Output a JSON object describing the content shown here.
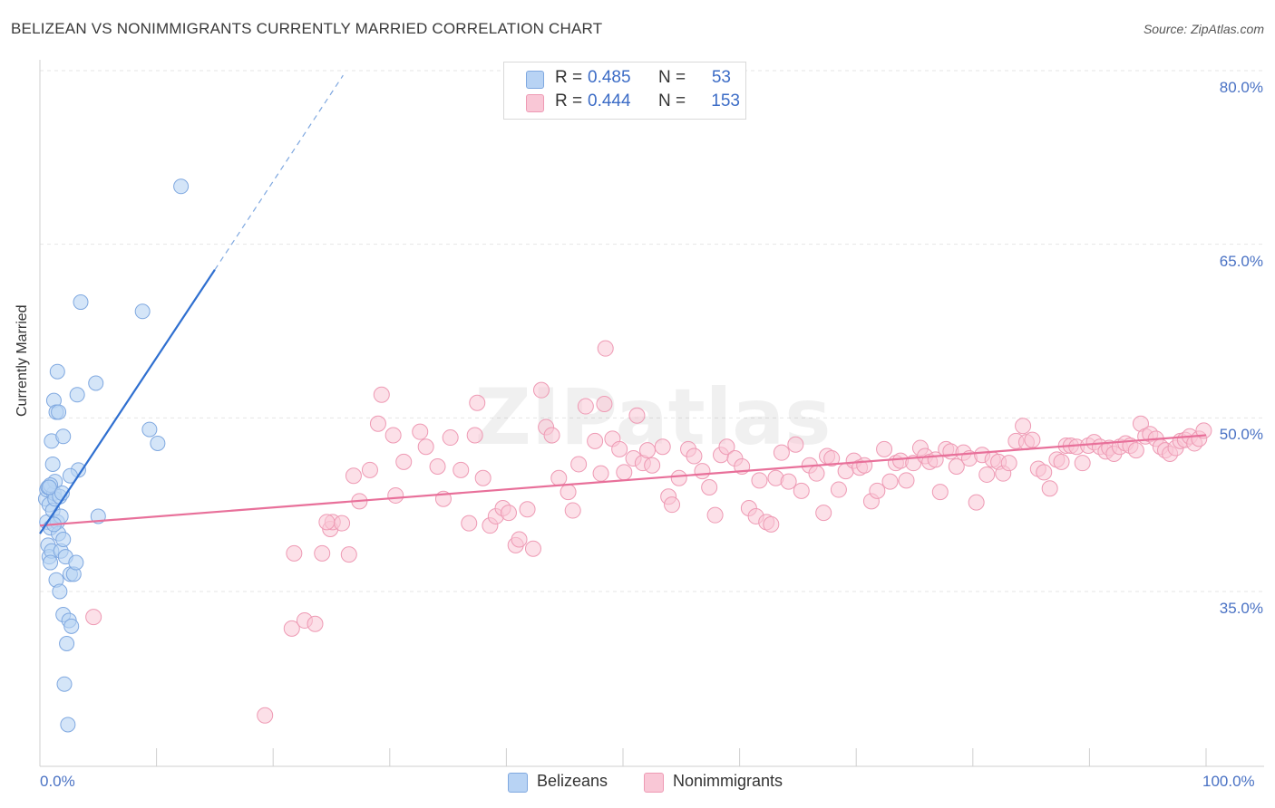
{
  "title": "BELIZEAN VS NONIMMIGRANTS CURRENTLY MARRIED CORRELATION CHART",
  "source": "Source: ZipAtlas.com",
  "watermark": "ZIPatlas",
  "colors": {
    "blue_fill": "#b8d3f4",
    "blue_stroke": "#7fa8e0",
    "blue_line": "#2f6fd0",
    "pink_fill": "#f9c7d6",
    "pink_stroke": "#ee9ab4",
    "pink_line": "#e8709a",
    "label": "#4a72c4",
    "grid": "#e6e6e6"
  },
  "stats": [
    {
      "r_label": "R =",
      "r_value": "0.485",
      "n_label": "N =",
      "n_value": "53",
      "color": "#b8d3f4"
    },
    {
      "r_label": "R =",
      "r_value": "0.444",
      "n_label": "N =",
      "n_value": "153",
      "color": "#f9c7d6"
    }
  ],
  "legend": [
    {
      "label": "Belizeans",
      "color": "#b8d3f4"
    },
    {
      "label": "Nonimmigrants",
      "color": "#f9c7d6"
    }
  ],
  "chart_data": {
    "type": "scatter",
    "title": "BELIZEAN VS NONIMMIGRANTS CURRENTLY MARRIED CORRELATION CHART",
    "xlabel": "",
    "ylabel": "Currently Married",
    "xlim": [
      0,
      100
    ],
    "ylim": [
      20,
      83
    ],
    "x_tick_labels": [
      "0.0%",
      "100.0%"
    ],
    "y_ticks": [
      35,
      50,
      65,
      80
    ],
    "y_tick_labels": [
      "35.0%",
      "50.0%",
      "65.0%",
      "80.0%"
    ],
    "grid": true,
    "series": [
      {
        "name": "Belizeans",
        "color": "#b8d3f4",
        "trend": {
          "x0": 0,
          "y0": 40.0,
          "x1": 15,
          "y1": 62.8,
          "dash_to_x": 26,
          "dash_to_y": 79.6
        },
        "points": [
          [
            0.5,
            43
          ],
          [
            0.6,
            43.8
          ],
          [
            0.7,
            44
          ],
          [
            0.8,
            42.5
          ],
          [
            0.6,
            41
          ],
          [
            0.9,
            40.5
          ],
          [
            0.7,
            39
          ],
          [
            0.8,
            38
          ],
          [
            1.0,
            38.5
          ],
          [
            0.9,
            37.5
          ],
          [
            1.1,
            42
          ],
          [
            1.2,
            43.5
          ],
          [
            1.3,
            44.5
          ],
          [
            1.5,
            41
          ],
          [
            1.6,
            40
          ],
          [
            1.4,
            36
          ],
          [
            1.7,
            35
          ],
          [
            1.8,
            38.5
          ],
          [
            2.0,
            39.5
          ],
          [
            2.2,
            38
          ],
          [
            1.3,
            43
          ],
          [
            1.1,
            46
          ],
          [
            1.0,
            48
          ],
          [
            1.2,
            51.5
          ],
          [
            1.4,
            50.5
          ],
          [
            1.6,
            50.5
          ],
          [
            1.5,
            54
          ],
          [
            1.8,
            41.5
          ],
          [
            2.0,
            33
          ],
          [
            2.3,
            30.5
          ],
          [
            2.5,
            32.5
          ],
          [
            2.7,
            32
          ],
          [
            2.1,
            27
          ],
          [
            2.4,
            23.5
          ],
          [
            2.6,
            36.5
          ],
          [
            2.9,
            36.5
          ],
          [
            3.1,
            37.5
          ],
          [
            3.3,
            45.5
          ],
          [
            3.2,
            52
          ],
          [
            3.5,
            60
          ],
          [
            4.8,
            53
          ],
          [
            5.0,
            41.5
          ],
          [
            8.8,
            59.2
          ],
          [
            9.4,
            49
          ],
          [
            10.1,
            47.8
          ],
          [
            12.1,
            70
          ],
          [
            2.0,
            48.4
          ],
          [
            1.7,
            43.2
          ],
          [
            0.9,
            44.2
          ],
          [
            2.6,
            45
          ],
          [
            1.2,
            40.8
          ],
          [
            0.8,
            44
          ],
          [
            1.9,
            43.5
          ]
        ]
      },
      {
        "name": "Nonimmigrants",
        "color": "#f9c7d6",
        "trend": {
          "x0": 0,
          "y0": 40.7,
          "x1": 100,
          "y1": 48.5
        },
        "points": [
          [
            4.6,
            32.8
          ],
          [
            19.3,
            24.3
          ],
          [
            21.6,
            31.8
          ],
          [
            21.8,
            38.3
          ],
          [
            22.7,
            32.5
          ],
          [
            23.6,
            32.2
          ],
          [
            24.2,
            38.3
          ],
          [
            24.9,
            40.4
          ],
          [
            25.1,
            41
          ],
          [
            25.9,
            40.9
          ],
          [
            26.5,
            38.2
          ],
          [
            26.9,
            45
          ],
          [
            27.4,
            42.8
          ],
          [
            28.3,
            45.5
          ],
          [
            29,
            49.5
          ],
          [
            29.3,
            52
          ],
          [
            30.3,
            48.5
          ],
          [
            30.5,
            43.3
          ],
          [
            31.2,
            46.2
          ],
          [
            32.6,
            48.8
          ],
          [
            33.1,
            47.5
          ],
          [
            34.1,
            45.8
          ],
          [
            34.6,
            43
          ],
          [
            35.2,
            48.3
          ],
          [
            36.1,
            45.5
          ],
          [
            37.3,
            48.5
          ],
          [
            37.5,
            51.3
          ],
          [
            38,
            44.8
          ],
          [
            38.6,
            40.7
          ],
          [
            39.1,
            41.5
          ],
          [
            39.7,
            42.2
          ],
          [
            40.2,
            41.8
          ],
          [
            40.8,
            39
          ],
          [
            41.1,
            39.5
          ],
          [
            41.8,
            42.1
          ],
          [
            42.3,
            38.7
          ],
          [
            43,
            52.4
          ],
          [
            43.4,
            49.2
          ],
          [
            43.9,
            48.5
          ],
          [
            44.5,
            44.8
          ],
          [
            45.3,
            43.6
          ],
          [
            45.7,
            42
          ],
          [
            46.2,
            46
          ],
          [
            46.8,
            51
          ],
          [
            47.6,
            48
          ],
          [
            48.1,
            45.2
          ],
          [
            48.4,
            51.2
          ],
          [
            48.5,
            56
          ],
          [
            49.1,
            48.2
          ],
          [
            49.7,
            47.3
          ],
          [
            50.1,
            45.3
          ],
          [
            50.9,
            46.5
          ],
          [
            51.2,
            50.2
          ],
          [
            51.7,
            46.1
          ],
          [
            52.1,
            47.2
          ],
          [
            52.5,
            45.9
          ],
          [
            53.4,
            47.5
          ],
          [
            53.9,
            43.2
          ],
          [
            54.2,
            42.5
          ],
          [
            54.8,
            44.8
          ],
          [
            55.6,
            47.3
          ],
          [
            56.1,
            46.7
          ],
          [
            56.8,
            45.4
          ],
          [
            57.4,
            44
          ],
          [
            57.9,
            41.6
          ],
          [
            58.4,
            46.8
          ],
          [
            58.9,
            47.5
          ],
          [
            59.6,
            46.5
          ],
          [
            60.2,
            45.8
          ],
          [
            60.8,
            42.2
          ],
          [
            61.4,
            41.5
          ],
          [
            61.7,
            44.6
          ],
          [
            62.3,
            41
          ],
          [
            62.7,
            40.8
          ],
          [
            63.1,
            44.8
          ],
          [
            63.6,
            47
          ],
          [
            64.2,
            44.5
          ],
          [
            64.8,
            47.7
          ],
          [
            65.3,
            43.7
          ],
          [
            66,
            45.9
          ],
          [
            66.6,
            45.2
          ],
          [
            67.2,
            41.8
          ],
          [
            67.5,
            46.7
          ],
          [
            67.9,
            46.5
          ],
          [
            68.5,
            43.8
          ],
          [
            69.1,
            45.4
          ],
          [
            69.8,
            46.3
          ],
          [
            70.3,
            45.7
          ],
          [
            70.7,
            45.9
          ],
          [
            71.3,
            42.8
          ],
          [
            71.8,
            43.7
          ],
          [
            72.4,
            47.3
          ],
          [
            72.9,
            44.5
          ],
          [
            73.4,
            46.1
          ],
          [
            73.8,
            46.3
          ],
          [
            74.3,
            44.6
          ],
          [
            74.9,
            46.1
          ],
          [
            75.5,
            47.4
          ],
          [
            75.9,
            46.7
          ],
          [
            76.3,
            46.2
          ],
          [
            76.8,
            46.4
          ],
          [
            77.2,
            43.6
          ],
          [
            77.7,
            47.3
          ],
          [
            78.1,
            47.1
          ],
          [
            78.6,
            45.8
          ],
          [
            79.2,
            47
          ],
          [
            79.7,
            46.5
          ],
          [
            80.3,
            42.7
          ],
          [
            80.8,
            46.8
          ],
          [
            81.2,
            45.1
          ],
          [
            81.7,
            46.4
          ],
          [
            82.2,
            46.2
          ],
          [
            82.6,
            45.2
          ],
          [
            83.1,
            46.1
          ],
          [
            83.7,
            48
          ],
          [
            84.3,
            49.3
          ],
          [
            84.6,
            47.9
          ],
          [
            85.1,
            48.1
          ],
          [
            85.6,
            45.6
          ],
          [
            86.1,
            45.3
          ],
          [
            86.6,
            43.9
          ],
          [
            87.2,
            46.4
          ],
          [
            87.6,
            46.2
          ],
          [
            88,
            47.6
          ],
          [
            88.4,
            47.6
          ],
          [
            88.9,
            47.5
          ],
          [
            89.4,
            46.1
          ],
          [
            89.9,
            47.6
          ],
          [
            90.4,
            47.9
          ],
          [
            90.9,
            47.5
          ],
          [
            91.4,
            47.1
          ],
          [
            91.7,
            47.4
          ],
          [
            92.1,
            46.9
          ],
          [
            92.6,
            47.5
          ],
          [
            93.1,
            47.8
          ],
          [
            93.5,
            47.6
          ],
          [
            94,
            47.2
          ],
          [
            94.4,
            49.5
          ],
          [
            94.8,
            48.4
          ],
          [
            95.2,
            48.6
          ],
          [
            95.7,
            48.2
          ],
          [
            96.1,
            47.5
          ],
          [
            96.5,
            47.2
          ],
          [
            96.9,
            46.9
          ],
          [
            97.4,
            47.4
          ],
          [
            97.8,
            48
          ],
          [
            98.2,
            48.1
          ],
          [
            98.6,
            48.4
          ],
          [
            99,
            47.8
          ],
          [
            99.4,
            48.2
          ],
          [
            99.8,
            48.9
          ],
          [
            24.6,
            41
          ],
          [
            36.8,
            40.9
          ]
        ]
      }
    ]
  }
}
